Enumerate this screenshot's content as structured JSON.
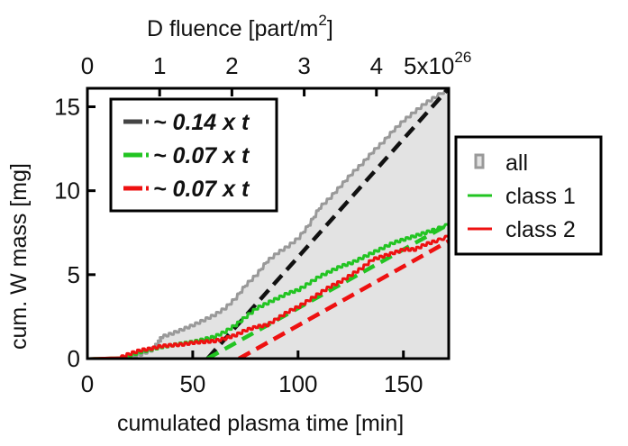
{
  "chart_data": {
    "type": "line",
    "title": "",
    "xlabel": "cumulated plasma time [min]",
    "ylabel": "cum. W mass [mg]",
    "top_xlabel": "D fluence [part/m",
    "top_xlabel_sup": "2",
    "top_xlabel_end": "]",
    "xlim": [
      0,
      171.5
    ],
    "ylim": [
      0,
      16.1
    ],
    "xticks": [
      0,
      50,
      100,
      150
    ],
    "xtick_labels": [
      "0",
      "50",
      "100",
      "150"
    ],
    "yticks": [
      0,
      5,
      10,
      15
    ],
    "ytick_labels": [
      "0",
      "5",
      "10",
      "15"
    ],
    "top_xlim": [
      0,
      5
    ],
    "top_xticks": [
      0,
      1,
      2,
      3,
      4,
      5
    ],
    "top_xtick_labels": [
      "0",
      "1",
      "2",
      "3",
      "4",
      "5x10"
    ],
    "top_xtick_exponent": "26",
    "grid": false,
    "series": [
      {
        "name": "all",
        "style": "filled-step",
        "color": "#999999",
        "fill": "#e3e3e3",
        "x": [
          0,
          15,
          20,
          25,
          30,
          33,
          35,
          40,
          45,
          50,
          55,
          60,
          65,
          70,
          75,
          80,
          85,
          90,
          95,
          100,
          105,
          110,
          115,
          120,
          125,
          130,
          135,
          140,
          145,
          150,
          155,
          160,
          165,
          171.5
        ],
        "y": [
          0,
          0.02,
          0.1,
          0.25,
          0.5,
          0.9,
          1.3,
          1.5,
          1.75,
          2.0,
          2.3,
          2.6,
          3.0,
          3.6,
          4.4,
          5.0,
          5.8,
          6.3,
          6.7,
          7.2,
          8.0,
          9.0,
          9.6,
          10.3,
          11.0,
          11.6,
          12.3,
          12.9,
          13.6,
          14.2,
          14.7,
          15.2,
          15.6,
          16.1
        ]
      },
      {
        "name": "class 1",
        "style": "step",
        "color": "#22c422",
        "x": [
          0,
          15,
          20,
          25,
          30,
          35,
          40,
          45,
          50,
          55,
          60,
          65,
          70,
          75,
          80,
          85,
          90,
          95,
          100,
          105,
          110,
          115,
          120,
          125,
          130,
          135,
          140,
          145,
          150,
          155,
          160,
          165,
          171.5
        ],
        "y": [
          0,
          0.05,
          0.2,
          0.4,
          0.55,
          0.7,
          0.8,
          0.9,
          1.0,
          1.15,
          1.3,
          1.6,
          2.0,
          2.5,
          3.0,
          3.3,
          3.6,
          3.9,
          4.1,
          4.5,
          4.9,
          5.2,
          5.5,
          5.7,
          6.0,
          6.3,
          6.6,
          6.9,
          7.1,
          7.3,
          7.5,
          7.7,
          8.0
        ]
      },
      {
        "name": "class 2",
        "style": "step",
        "color": "#ee1111",
        "x": [
          0,
          15,
          20,
          25,
          30,
          35,
          40,
          45,
          50,
          55,
          60,
          65,
          70,
          75,
          80,
          85,
          90,
          95,
          100,
          105,
          110,
          115,
          120,
          125,
          130,
          135,
          140,
          145,
          150,
          155,
          160,
          165,
          171.5
        ],
        "y": [
          0,
          0.05,
          0.3,
          0.5,
          0.6,
          0.75,
          0.8,
          0.85,
          0.95,
          1.0,
          1.05,
          1.2,
          1.4,
          1.7,
          1.9,
          2.0,
          2.4,
          2.8,
          3.1,
          3.5,
          3.9,
          4.3,
          4.6,
          5.0,
          5.4,
          5.9,
          6.1,
          6.3,
          6.5,
          6.5,
          6.8,
          7.0,
          7.3
        ]
      },
      {
        "name": "~ 0.14 x t",
        "style": "dashed-fit",
        "color": "#111111",
        "legend_color": "#444444",
        "x": [
          57,
          171.5
        ],
        "y": [
          0,
          16.1
        ]
      },
      {
        "name": "~ 0.07 x t",
        "style": "dashed-fit",
        "color": "#22c422",
        "legend_color": "#22c422",
        "x": [
          57,
          171.5
        ],
        "y": [
          0,
          8.0
        ]
      },
      {
        "name": "~ 0.07 x t",
        "style": "dashed-fit",
        "color": "#ee1111",
        "legend_color": "#ee1111",
        "x": [
          72,
          171.5
        ],
        "y": [
          0,
          7.0
        ]
      }
    ],
    "legends": [
      {
        "placement": "top-left-inside",
        "entries": [
          "~ 0.14 x t",
          "~ 0.07 x t",
          "~ 0.07 x t"
        ]
      },
      {
        "placement": "right-outside",
        "entries": [
          "all",
          "class 1",
          "class 2"
        ]
      }
    ]
  }
}
